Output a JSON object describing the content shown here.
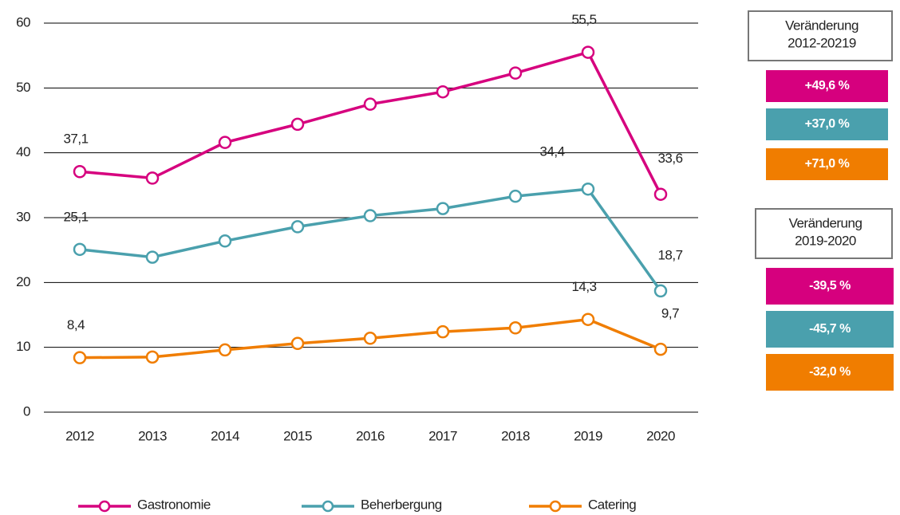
{
  "chart_data": {
    "type": "line",
    "categories": [
      "2012",
      "2013",
      "2014",
      "2015",
      "2016",
      "2017",
      "2018",
      "2019",
      "2020"
    ],
    "ylim": [
      0,
      60
    ],
    "yticks": [
      0,
      10,
      20,
      30,
      40,
      50,
      60
    ],
    "grid": true,
    "series": [
      {
        "name": "Gastronomie",
        "color": "#d6007e",
        "values": [
          37.1,
          36.1,
          41.6,
          44.4,
          47.5,
          49.4,
          52.3,
          55.5,
          33.6
        ],
        "value_labels": [
          "37,1",
          null,
          null,
          null,
          null,
          null,
          null,
          "55,5",
          "33,6"
        ]
      },
      {
        "name": "Beherbergung",
        "color": "#4aa0ad",
        "values": [
          25.1,
          23.9,
          26.4,
          28.6,
          30.3,
          31.4,
          33.3,
          34.4,
          18.7
        ],
        "value_labels": [
          "25,1",
          null,
          null,
          null,
          null,
          null,
          null,
          "34,4",
          "18,7"
        ]
      },
      {
        "name": "Catering",
        "color": "#f07d00",
        "values": [
          8.4,
          8.5,
          9.6,
          10.6,
          11.4,
          12.4,
          13.0,
          14.3,
          9.7
        ],
        "value_labels": [
          "8,4",
          null,
          null,
          null,
          null,
          null,
          null,
          "14,3",
          "9,7"
        ]
      }
    ],
    "change_panels": [
      {
        "title": [
          "Veränderung",
          "2012-20219"
        ],
        "items": [
          "+49,6 %",
          "+37,0 %",
          "+71,0 %"
        ]
      },
      {
        "title": [
          "Veränderung",
          "2019-2020"
        ],
        "items": [
          "-39,5 %",
          "-45,7 %",
          "-32,0 %"
        ]
      }
    ]
  }
}
